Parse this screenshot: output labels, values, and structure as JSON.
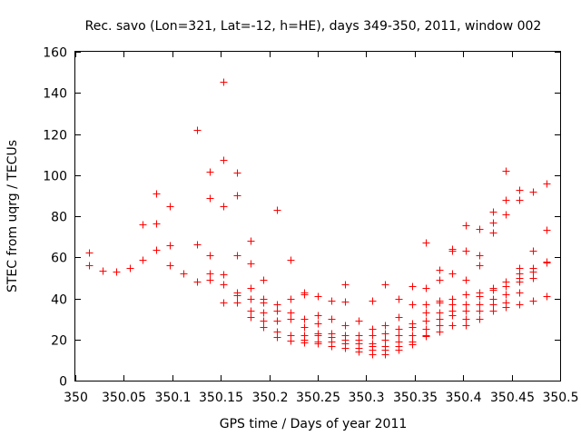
{
  "chart_data": {
    "type": "scatter",
    "title": "Rec. savo (Lon=321, Lat=-12, h=HE), days 349-350, 2011, window 002",
    "xlabel": "GPS time / Days of year 2011",
    "ylabel": "STEC from uqrg / TECUs",
    "xlim": [
      350,
      350.5
    ],
    "ylim": [
      0,
      160
    ],
    "xticks": [
      "350",
      "350.05",
      "350.1",
      "350.15",
      "350.2",
      "350.25",
      "350.3",
      "350.35",
      "350.4",
      "350.45",
      "350.5"
    ],
    "yticks": [
      "0",
      "20",
      "40",
      "60",
      "80",
      "100",
      "120",
      "140",
      "160"
    ],
    "grid": false,
    "marker": "+",
    "color": "#ff0000",
    "series": [
      {
        "name": "STEC",
        "points": [
          [
            350.014,
            62.5
          ],
          [
            350.014,
            56
          ],
          [
            350.028,
            53.5
          ],
          [
            350.042,
            53
          ],
          [
            350.056,
            55
          ],
          [
            350.069,
            59
          ],
          [
            350.069,
            76
          ],
          [
            350.083,
            91
          ],
          [
            350.083,
            76.5
          ],
          [
            350.083,
            63.5
          ],
          [
            350.097,
            85
          ],
          [
            350.097,
            66
          ],
          [
            350.097,
            56
          ],
          [
            350.111,
            52
          ],
          [
            350.125,
            122
          ],
          [
            350.125,
            66.5
          ],
          [
            350.125,
            48
          ],
          [
            350.139,
            101.5
          ],
          [
            350.139,
            89
          ],
          [
            350.139,
            61
          ],
          [
            350.139,
            52
          ],
          [
            350.139,
            49
          ],
          [
            350.153,
            145.5
          ],
          [
            350.153,
            107.5
          ],
          [
            350.153,
            85
          ],
          [
            350.153,
            51.5
          ],
          [
            350.153,
            47
          ],
          [
            350.153,
            38
          ],
          [
            350.167,
            101
          ],
          [
            350.167,
            90
          ],
          [
            350.167,
            61
          ],
          [
            350.167,
            43
          ],
          [
            350.167,
            41.5
          ],
          [
            350.167,
            38
          ],
          [
            350.181,
            68
          ],
          [
            350.181,
            57
          ],
          [
            350.181,
            45
          ],
          [
            350.181,
            40
          ],
          [
            350.181,
            34
          ],
          [
            350.181,
            31
          ],
          [
            350.194,
            49
          ],
          [
            350.194,
            40
          ],
          [
            350.194,
            38
          ],
          [
            350.194,
            33
          ],
          [
            350.194,
            29
          ],
          [
            350.194,
            26
          ],
          [
            350.208,
            83
          ],
          [
            350.208,
            37
          ],
          [
            350.208,
            34
          ],
          [
            350.208,
            29
          ],
          [
            350.208,
            24
          ],
          [
            350.208,
            21
          ],
          [
            350.222,
            59
          ],
          [
            350.222,
            40
          ],
          [
            350.222,
            33
          ],
          [
            350.222,
            30
          ],
          [
            350.222,
            22
          ],
          [
            350.222,
            19.5
          ],
          [
            350.236,
            43
          ],
          [
            350.236,
            42
          ],
          [
            350.236,
            30
          ],
          [
            350.236,
            26
          ],
          [
            350.236,
            22
          ],
          [
            350.236,
            20
          ],
          [
            350.236,
            18.5
          ],
          [
            350.25,
            41
          ],
          [
            350.25,
            32
          ],
          [
            350.25,
            28
          ],
          [
            350.25,
            23
          ],
          [
            350.25,
            22
          ],
          [
            350.25,
            19
          ],
          [
            350.25,
            18
          ],
          [
            350.264,
            39
          ],
          [
            350.264,
            30
          ],
          [
            350.264,
            23
          ],
          [
            350.264,
            21
          ],
          [
            350.264,
            19
          ],
          [
            350.264,
            17
          ],
          [
            350.278,
            47
          ],
          [
            350.278,
            38.5
          ],
          [
            350.278,
            27
          ],
          [
            350.278,
            22
          ],
          [
            350.278,
            20
          ],
          [
            350.278,
            18
          ],
          [
            350.278,
            16
          ],
          [
            350.292,
            29
          ],
          [
            350.292,
            22
          ],
          [
            350.292,
            20
          ],
          [
            350.292,
            18
          ],
          [
            350.292,
            16
          ],
          [
            350.292,
            14
          ],
          [
            350.306,
            39
          ],
          [
            350.306,
            25
          ],
          [
            350.306,
            22
          ],
          [
            350.306,
            18
          ],
          [
            350.306,
            17
          ],
          [
            350.306,
            15
          ],
          [
            350.306,
            13
          ],
          [
            350.319,
            47
          ],
          [
            350.319,
            27
          ],
          [
            350.319,
            23
          ],
          [
            350.319,
            20
          ],
          [
            350.319,
            17
          ],
          [
            350.319,
            15
          ],
          [
            350.319,
            13
          ],
          [
            350.333,
            40
          ],
          [
            350.333,
            31
          ],
          [
            350.333,
            25
          ],
          [
            350.333,
            22
          ],
          [
            350.333,
            19
          ],
          [
            350.333,
            17
          ],
          [
            350.333,
            15
          ],
          [
            350.347,
            46
          ],
          [
            350.347,
            37
          ],
          [
            350.347,
            28
          ],
          [
            350.347,
            26
          ],
          [
            350.347,
            22
          ],
          [
            350.347,
            19
          ],
          [
            350.347,
            17.5
          ],
          [
            350.361,
            67
          ],
          [
            350.361,
            45
          ],
          [
            350.361,
            37
          ],
          [
            350.361,
            33
          ],
          [
            350.361,
            29
          ],
          [
            350.361,
            25
          ],
          [
            350.361,
            22
          ],
          [
            350.361,
            21.5
          ],
          [
            350.375,
            54
          ],
          [
            350.375,
            49
          ],
          [
            350.375,
            39
          ],
          [
            350.375,
            38
          ],
          [
            350.375,
            33
          ],
          [
            350.375,
            30
          ],
          [
            350.375,
            27
          ],
          [
            350.375,
            24
          ],
          [
            350.389,
            64
          ],
          [
            350.389,
            63
          ],
          [
            350.389,
            52
          ],
          [
            350.389,
            40
          ],
          [
            350.389,
            37
          ],
          [
            350.389,
            34
          ],
          [
            350.389,
            32
          ],
          [
            350.389,
            27
          ],
          [
            350.403,
            75.5
          ],
          [
            350.403,
            63
          ],
          [
            350.403,
            49
          ],
          [
            350.403,
            42
          ],
          [
            350.403,
            37
          ],
          [
            350.403,
            34
          ],
          [
            350.403,
            30
          ],
          [
            350.403,
            27
          ],
          [
            350.417,
            74
          ],
          [
            350.417,
            61
          ],
          [
            350.417,
            56
          ],
          [
            350.417,
            43
          ],
          [
            350.417,
            41
          ],
          [
            350.417,
            37
          ],
          [
            350.417,
            34
          ],
          [
            350.417,
            30
          ],
          [
            350.431,
            82
          ],
          [
            350.431,
            77
          ],
          [
            350.431,
            72
          ],
          [
            350.431,
            45
          ],
          [
            350.431,
            44
          ],
          [
            350.431,
            40
          ],
          [
            350.431,
            37
          ],
          [
            350.431,
            34
          ],
          [
            350.444,
            102
          ],
          [
            350.444,
            88
          ],
          [
            350.444,
            81
          ],
          [
            350.444,
            48
          ],
          [
            350.444,
            46
          ],
          [
            350.444,
            42
          ],
          [
            350.444,
            38
          ],
          [
            350.444,
            36
          ],
          [
            350.458,
            93
          ],
          [
            350.458,
            88
          ],
          [
            350.458,
            55
          ],
          [
            350.458,
            52
          ],
          [
            350.458,
            50
          ],
          [
            350.458,
            48
          ],
          [
            350.458,
            43
          ],
          [
            350.458,
            37
          ],
          [
            350.472,
            92
          ],
          [
            350.472,
            63
          ],
          [
            350.472,
            55
          ],
          [
            350.472,
            53
          ],
          [
            350.472,
            50
          ],
          [
            350.472,
            39
          ],
          [
            350.486,
            96
          ],
          [
            350.486,
            73.5
          ],
          [
            350.486,
            58
          ],
          [
            350.486,
            57.5
          ],
          [
            350.486,
            41
          ]
        ]
      }
    ]
  }
}
